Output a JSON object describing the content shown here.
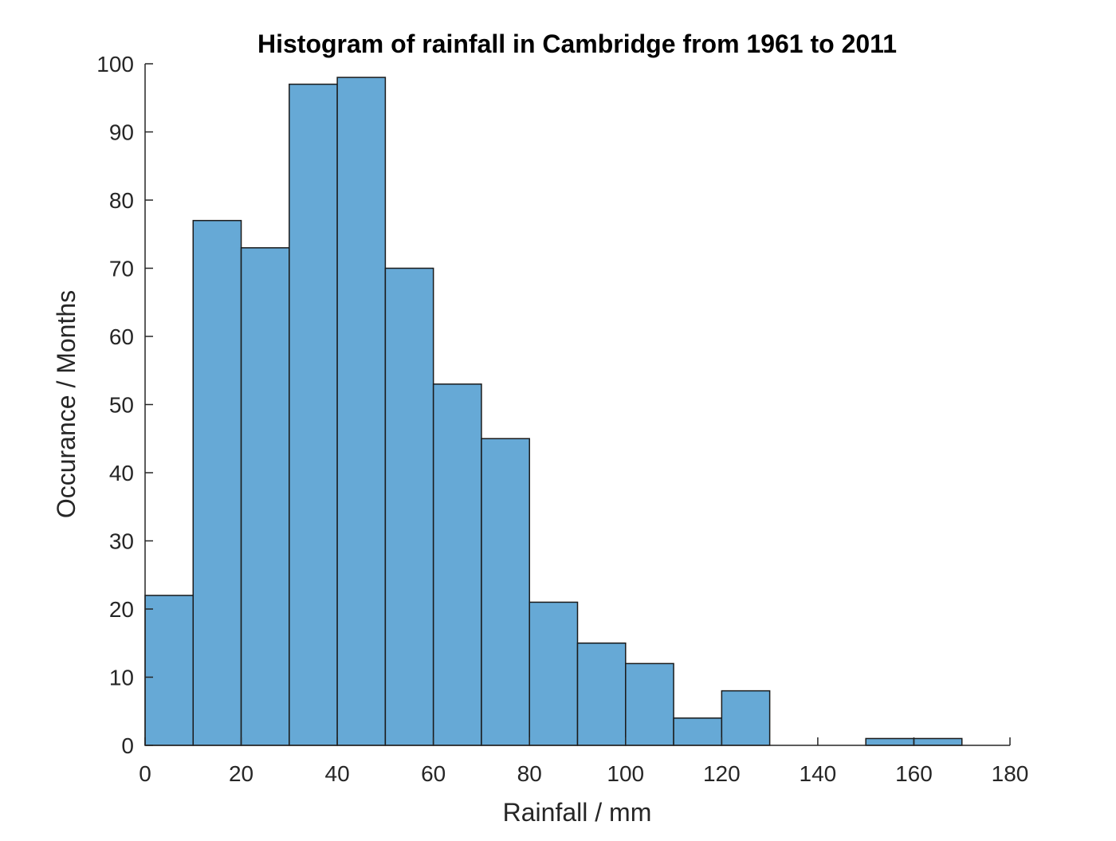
{
  "chart_data": {
    "type": "bar",
    "title": "Histogram of rainfall in Cambridge from 1961 to 2011",
    "xlabel": "Rainfall / mm",
    "ylabel": "Occurance / Months",
    "bin_edges": [
      0,
      10,
      20,
      30,
      40,
      50,
      60,
      70,
      80,
      90,
      100,
      110,
      120,
      130,
      140,
      150,
      160,
      170
    ],
    "values": [
      22,
      77,
      73,
      97,
      98,
      70,
      53,
      45,
      21,
      15,
      12,
      4,
      8,
      0,
      0,
      1,
      1
    ],
    "xlim": [
      0,
      180
    ],
    "ylim": [
      0,
      100
    ],
    "xticks": [
      0,
      20,
      40,
      60,
      80,
      100,
      120,
      140,
      160,
      180
    ],
    "yticks": [
      0,
      10,
      20,
      30,
      40,
      50,
      60,
      70,
      80,
      90,
      100
    ],
    "grid": false,
    "bar_color": "#66a9d6",
    "bar_edge_color": "#1a1a1a"
  }
}
